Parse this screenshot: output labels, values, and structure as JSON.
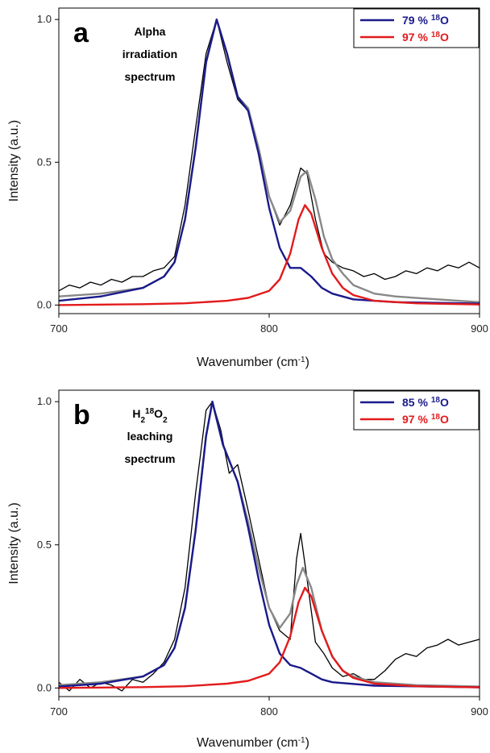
{
  "chart_data": [
    {
      "type": "line",
      "panel_label": "a",
      "annotation": [
        "Alpha",
        "irradiation",
        "spectrum"
      ],
      "xlabel": "Wavenumber (cm⁻¹)",
      "ylabel": "Intensity (a.u.)",
      "xlim": [
        700,
        900
      ],
      "ylim": [
        -0.03,
        1.04
      ],
      "xticks": [
        700,
        800,
        900
      ],
      "yticks": [
        "0.0",
        "0.5",
        "1.0"
      ],
      "legend_position": "top-right",
      "legend": [
        {
          "text": "79 % ¹⁸O",
          "color": "#1a1a8c"
        },
        {
          "text": "97 % ¹⁸O",
          "color": "#e31a1c"
        }
      ],
      "series": [
        {
          "color": "#000000",
          "values": [
            [
              700,
              0.05
            ],
            [
              705,
              0.07
            ],
            [
              710,
              0.06
            ],
            [
              715,
              0.08
            ],
            [
              720,
              0.07
            ],
            [
              725,
              0.09
            ],
            [
              730,
              0.08
            ],
            [
              735,
              0.1
            ],
            [
              740,
              0.1
            ],
            [
              745,
              0.12
            ],
            [
              750,
              0.13
            ],
            [
              755,
              0.17
            ],
            [
              760,
              0.35
            ],
            [
              765,
              0.62
            ],
            [
              770,
              0.88
            ],
            [
              775,
              1.0
            ],
            [
              780,
              0.85
            ],
            [
              785,
              0.72
            ],
            [
              790,
              0.68
            ],
            [
              795,
              0.55
            ],
            [
              800,
              0.38
            ],
            [
              805,
              0.28
            ],
            [
              810,
              0.35
            ],
            [
              815,
              0.48
            ],
            [
              818,
              0.46
            ],
            [
              822,
              0.3
            ],
            [
              826,
              0.18
            ],
            [
              830,
              0.15
            ],
            [
              835,
              0.13
            ],
            [
              840,
              0.12
            ],
            [
              845,
              0.1
            ],
            [
              850,
              0.11
            ],
            [
              855,
              0.09
            ],
            [
              860,
              0.1
            ],
            [
              865,
              0.12
            ],
            [
              870,
              0.11
            ],
            [
              875,
              0.13
            ],
            [
              880,
              0.12
            ],
            [
              885,
              0.14
            ],
            [
              890,
              0.13
            ],
            [
              895,
              0.15
            ],
            [
              900,
              0.13
            ]
          ]
        },
        {
          "color": "#888888",
          "values": [
            [
              700,
              0.03
            ],
            [
              720,
              0.04
            ],
            [
              740,
              0.06
            ],
            [
              750,
              0.1
            ],
            [
              755,
              0.15
            ],
            [
              760,
              0.3
            ],
            [
              765,
              0.55
            ],
            [
              770,
              0.85
            ],
            [
              775,
              1.0
            ],
            [
              780,
              0.88
            ],
            [
              785,
              0.73
            ],
            [
              790,
              0.69
            ],
            [
              795,
              0.55
            ],
            [
              800,
              0.38
            ],
            [
              805,
              0.29
            ],
            [
              810,
              0.33
            ],
            [
              815,
              0.45
            ],
            [
              818,
              0.47
            ],
            [
              822,
              0.37
            ],
            [
              826,
              0.24
            ],
            [
              830,
              0.16
            ],
            [
              835,
              0.11
            ],
            [
              840,
              0.07
            ],
            [
              850,
              0.04
            ],
            [
              860,
              0.03
            ],
            [
              880,
              0.02
            ],
            [
              900,
              0.01
            ]
          ]
        },
        {
          "color": "#1a1a8c",
          "values": [
            [
              700,
              0.015
            ],
            [
              720,
              0.03
            ],
            [
              740,
              0.06
            ],
            [
              750,
              0.1
            ],
            [
              755,
              0.15
            ],
            [
              760,
              0.3
            ],
            [
              765,
              0.55
            ],
            [
              770,
              0.85
            ],
            [
              775,
              1.0
            ],
            [
              780,
              0.88
            ],
            [
              785,
              0.73
            ],
            [
              790,
              0.68
            ],
            [
              795,
              0.53
            ],
            [
              800,
              0.34
            ],
            [
              805,
              0.2
            ],
            [
              810,
              0.13
            ],
            [
              815,
              0.13
            ],
            [
              820,
              0.1
            ],
            [
              825,
              0.06
            ],
            [
              830,
              0.04
            ],
            [
              840,
              0.02
            ],
            [
              860,
              0.01
            ],
            [
              900,
              0.005
            ]
          ]
        },
        {
          "color": "#e31a1c",
          "values": [
            [
              700,
              0.0
            ],
            [
              740,
              0.003
            ],
            [
              760,
              0.006
            ],
            [
              780,
              0.015
            ],
            [
              790,
              0.025
            ],
            [
              800,
              0.05
            ],
            [
              805,
              0.09
            ],
            [
              810,
              0.18
            ],
            [
              814,
              0.3
            ],
            [
              817,
              0.35
            ],
            [
              820,
              0.32
            ],
            [
              825,
              0.2
            ],
            [
              830,
              0.11
            ],
            [
              835,
              0.06
            ],
            [
              840,
              0.035
            ],
            [
              850,
              0.015
            ],
            [
              870,
              0.006
            ],
            [
              900,
              0.002
            ]
          ]
        }
      ]
    },
    {
      "type": "line",
      "panel_label": "b",
      "annotation": [
        "H₂¹⁸O₂",
        "leaching",
        "spectrum"
      ],
      "xlabel": "Wavenumber (cm⁻¹)",
      "ylabel": "Intensity (a.u.)",
      "xlim": [
        700,
        900
      ],
      "ylim": [
        -0.03,
        1.04
      ],
      "xticks": [
        700,
        800,
        900
      ],
      "yticks": [
        "0.0",
        "0.5",
        "1.0"
      ],
      "legend_position": "top-right",
      "legend": [
        {
          "text": "85 % ¹⁸O",
          "color": "#1a1a8c"
        },
        {
          "text": "97 % ¹⁸O",
          "color": "#e31a1c"
        }
      ],
      "series": [
        {
          "color": "#000000",
          "values": [
            [
              700,
              0.02
            ],
            [
              705,
              -0.01
            ],
            [
              710,
              0.03
            ],
            [
              715,
              0.0
            ],
            [
              720,
              0.02
            ],
            [
              725,
              0.01
            ],
            [
              730,
              -0.01
            ],
            [
              735,
              0.03
            ],
            [
              740,
              0.02
            ],
            [
              745,
              0.05
            ],
            [
              750,
              0.09
            ],
            [
              755,
              0.17
            ],
            [
              760,
              0.35
            ],
            [
              765,
              0.68
            ],
            [
              770,
              0.97
            ],
            [
              773,
              1.0
            ],
            [
              777,
              0.9
            ],
            [
              781,
              0.75
            ],
            [
              785,
              0.78
            ],
            [
              790,
              0.62
            ],
            [
              795,
              0.45
            ],
            [
              800,
              0.28
            ],
            [
              805,
              0.2
            ],
            [
              810,
              0.17
            ],
            [
              813,
              0.45
            ],
            [
              815,
              0.54
            ],
            [
              818,
              0.38
            ],
            [
              822,
              0.16
            ],
            [
              826,
              0.12
            ],
            [
              830,
              0.07
            ],
            [
              835,
              0.04
            ],
            [
              840,
              0.05
            ],
            [
              845,
              0.03
            ],
            [
              850,
              0.03
            ],
            [
              855,
              0.06
            ],
            [
              860,
              0.1
            ],
            [
              865,
              0.12
            ],
            [
              870,
              0.11
            ],
            [
              875,
              0.14
            ],
            [
              880,
              0.15
            ],
            [
              885,
              0.17
            ],
            [
              890,
              0.15
            ],
            [
              895,
              0.16
            ],
            [
              900,
              0.17
            ]
          ]
        },
        {
          "color": "#888888",
          "values": [
            [
              700,
              0.01
            ],
            [
              720,
              0.02
            ],
            [
              740,
              0.04
            ],
            [
              750,
              0.08
            ],
            [
              755,
              0.14
            ],
            [
              760,
              0.28
            ],
            [
              765,
              0.55
            ],
            [
              770,
              0.88
            ],
            [
              773,
              1.0
            ],
            [
              778,
              0.85
            ],
            [
              785,
              0.72
            ],
            [
              790,
              0.58
            ],
            [
              795,
              0.42
            ],
            [
              800,
              0.28
            ],
            [
              805,
              0.21
            ],
            [
              810,
              0.26
            ],
            [
              813,
              0.36
            ],
            [
              816,
              0.42
            ],
            [
              820,
              0.35
            ],
            [
              825,
              0.2
            ],
            [
              830,
              0.11
            ],
            [
              835,
              0.06
            ],
            [
              840,
              0.04
            ],
            [
              850,
              0.02
            ],
            [
              870,
              0.01
            ],
            [
              900,
              0.005
            ]
          ]
        },
        {
          "color": "#1a1a8c",
          "values": [
            [
              700,
              0.005
            ],
            [
              720,
              0.015
            ],
            [
              740,
              0.04
            ],
            [
              750,
              0.08
            ],
            [
              755,
              0.14
            ],
            [
              760,
              0.28
            ],
            [
              765,
              0.55
            ],
            [
              770,
              0.88
            ],
            [
              773,
              1.0
            ],
            [
              778,
              0.85
            ],
            [
              785,
              0.72
            ],
            [
              790,
              0.56
            ],
            [
              795,
              0.38
            ],
            [
              800,
              0.22
            ],
            [
              805,
              0.12
            ],
            [
              810,
              0.08
            ],
            [
              815,
              0.07
            ],
            [
              820,
              0.05
            ],
            [
              825,
              0.03
            ],
            [
              830,
              0.02
            ],
            [
              850,
              0.008
            ],
            [
              900,
              0.002
            ]
          ]
        },
        {
          "color": "#e31a1c",
          "values": [
            [
              700,
              0.0
            ],
            [
              740,
              0.003
            ],
            [
              760,
              0.006
            ],
            [
              780,
              0.015
            ],
            [
              790,
              0.025
            ],
            [
              800,
              0.05
            ],
            [
              805,
              0.09
            ],
            [
              810,
              0.18
            ],
            [
              814,
              0.3
            ],
            [
              817,
              0.35
            ],
            [
              820,
              0.32
            ],
            [
              825,
              0.2
            ],
            [
              830,
              0.11
            ],
            [
              835,
              0.06
            ],
            [
              840,
              0.035
            ],
            [
              850,
              0.015
            ],
            [
              870,
              0.006
            ],
            [
              900,
              0.002
            ]
          ]
        }
      ]
    }
  ]
}
